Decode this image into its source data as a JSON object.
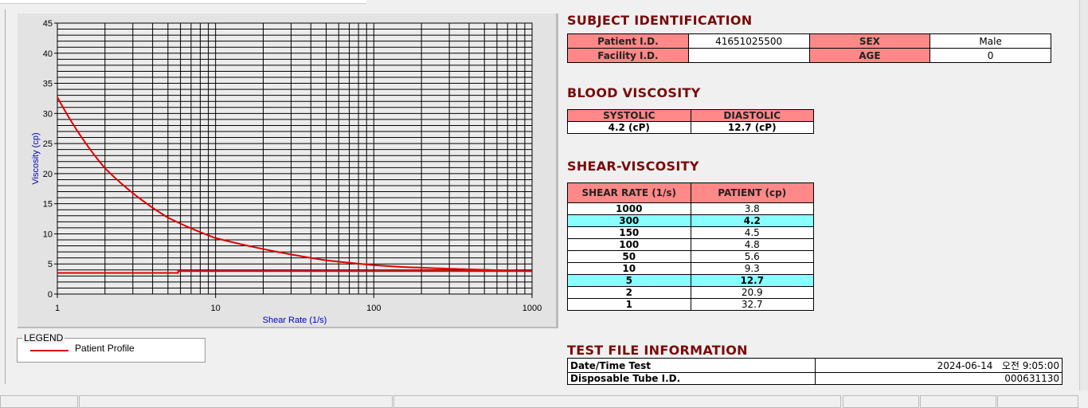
{
  "chart_data": {
    "type": "line",
    "xlabel": "Shear Rate (1/s)",
    "ylabel": "Viscosity (cp)",
    "xscale": "log",
    "xlim": [
      1,
      1000
    ],
    "ylim": [
      0,
      45
    ],
    "xticks": [
      "1",
      "10",
      "100",
      "1000"
    ],
    "yticks": [
      "0",
      "5",
      "10",
      "15",
      "20",
      "25",
      "30",
      "35",
      "40",
      "45"
    ],
    "grid": true,
    "series": [
      {
        "name": "Patient Profile",
        "color": "#e00000",
        "x": [
          1,
          2,
          5,
          10,
          50,
          100,
          150,
          300,
          1000
        ],
        "y": [
          32.7,
          20.9,
          12.7,
          9.3,
          5.6,
          4.8,
          4.5,
          4.2,
          3.8
        ]
      },
      {
        "color": "#e00000",
        "x": [
          1,
          5.8,
          5.8,
          1000
        ],
        "y": [
          3.5,
          3.5,
          3.8,
          3.8
        ]
      }
    ],
    "legend": {
      "title": "LEGEND",
      "position": "bottom-left"
    }
  },
  "subject": {
    "title": "SUBJECT IDENTIFICATION",
    "patient_id_label": "Patient I.D.",
    "patient_id": "41651025500",
    "sex_label": "SEX",
    "sex": "Male",
    "facility_id_label": "Facility I.D.",
    "facility_id": "",
    "age_label": "AGE",
    "age": "0"
  },
  "blood": {
    "title": "BLOOD VISCOSITY",
    "systolic_label": "SYSTOLIC",
    "diastolic_label": "DIASTOLIC",
    "systolic": "4.2 (cP)",
    "diastolic": "12.7 (cP)"
  },
  "shear": {
    "title": "SHEAR-VISCOSITY",
    "col1": "SHEAR RATE (1/s)",
    "col2": "PATIENT (cp)",
    "rows": [
      {
        "rate": "1000",
        "value": "3.8",
        "hl": false
      },
      {
        "rate": "300",
        "value": "4.2",
        "hl": true
      },
      {
        "rate": "150",
        "value": "4.5",
        "hl": false
      },
      {
        "rate": "100",
        "value": "4.8",
        "hl": false
      },
      {
        "rate": "50",
        "value": "5.6",
        "hl": false
      },
      {
        "rate": "10",
        "value": "9.3",
        "hl": false
      },
      {
        "rate": "5",
        "value": "12.7",
        "hl": true
      },
      {
        "rate": "2",
        "value": "20.9",
        "hl": false
      },
      {
        "rate": "1",
        "value": "32.7",
        "hl": false
      }
    ],
    "highlight_color": "#88ffff",
    "header_color": "#ff8888"
  },
  "testfile": {
    "title": "TEST FILE INFORMATION",
    "datetime_label": "Date/Time Test",
    "datetime": "2024-06-14   오전 9:05:00",
    "tube_label": "Disposable Tube I.D.",
    "tube": "000631130"
  }
}
